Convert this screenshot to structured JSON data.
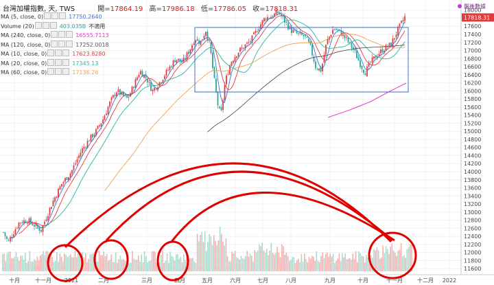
{
  "header": {
    "title": "台灣加權指數, 天, TWS",
    "open_label": "開=",
    "open": "17864.19",
    "high_label": "高=",
    "high": "17986.18",
    "low_label": "低=",
    "low": "17786.05",
    "close_label": "收=",
    "close": "17818.31"
  },
  "indicators": [
    {
      "label": "MA (5, close, 0)",
      "value": "17750.2640",
      "color": "#3b6fd4"
    },
    {
      "label": "Volume (20)",
      "value": "403.035B",
      "extra": "不適用",
      "color": "#26a69a"
    },
    {
      "label": "MA (240, close, 0)",
      "value": "16555.7113",
      "color": "#e040c8"
    },
    {
      "label": "MA (120, close, 0)",
      "value": "17252.0018",
      "color": "#555555"
    },
    {
      "label": "MA (10, close, 0)",
      "value": "17623.8280",
      "color": "#e53935"
    },
    {
      "label": "MA (20, close, 0)",
      "value": "17345.13",
      "color": "#26b5a0"
    },
    {
      "label": "MA (60, close, 0)",
      "value": "17136.26",
      "color": "#f0a050"
    }
  ],
  "live_label": "盤後數據",
  "price_tag": "17818.31",
  "colors": {
    "up": "#e23b3b",
    "down": "#26a69a",
    "accent": "#3b6fd4",
    "annotation": "#e00000"
  },
  "chart_data": {
    "type": "candlestick",
    "title": "台灣加權指數, 天, TWS",
    "y_ticks": [
      11600,
      11800,
      12000,
      12200,
      12400,
      12600,
      12800,
      13000,
      13200,
      13400,
      13600,
      13800,
      14000,
      14200,
      14400,
      14600,
      14800,
      15000,
      15200,
      15400,
      15600,
      15800,
      16000,
      16200,
      16400,
      16600,
      16800,
      17000,
      17200,
      17400,
      17600,
      17800,
      18000
    ],
    "y_tick_labels": [
      "11600",
      "11800",
      "12000",
      "12200",
      "12400",
      "12600",
      "12800",
      "13000",
      "13200",
      "13400",
      "13600",
      "13800",
      "14000",
      "14200",
      "14400",
      "14600",
      "14800",
      "15000",
      "15200",
      "15400",
      "15600",
      "15800",
      "16000",
      "16200",
      "16400",
      "16600",
      "16800",
      "17000",
      "17200",
      "17400",
      "17600",
      "17800",
      "18000"
    ],
    "ylim": [
      11450,
      18250
    ],
    "x_labels": [
      "十月",
      "十一月",
      "2021",
      "二月",
      "三月",
      "四月",
      "五月",
      "六月",
      "七月",
      "八月",
      "九月",
      "十月",
      "十一月",
      "十二月",
      "2022"
    ],
    "close_points": [
      [
        "十月",
        12600
      ],
      [
        "十一月",
        12400
      ],
      [
        "2021",
        13900
      ],
      [
        "二月",
        15600
      ],
      [
        "三月",
        16000
      ],
      [
        "四月",
        16800
      ],
      [
        "五月",
        17200
      ],
      [
        "五月",
        15500
      ],
      [
        "六月",
        17000
      ],
      [
        "七月",
        17900
      ],
      [
        "八月",
        17200
      ],
      [
        "九月",
        17000
      ],
      [
        "十月",
        16400
      ],
      [
        "十一月",
        17100
      ],
      [
        "十二月",
        17818
      ]
    ],
    "moving_averages": [
      {
        "name": "MA (60, close, 0)",
        "value": 17136.26
      },
      {
        "name": "MA (120, close, 0)",
        "value": 17252.0018
      },
      {
        "name": "MA (240, close, 0)",
        "value": 16555.7113
      }
    ],
    "annotations": [
      "consolidation box",
      "volume circles x5",
      "arcs"
    ]
  }
}
